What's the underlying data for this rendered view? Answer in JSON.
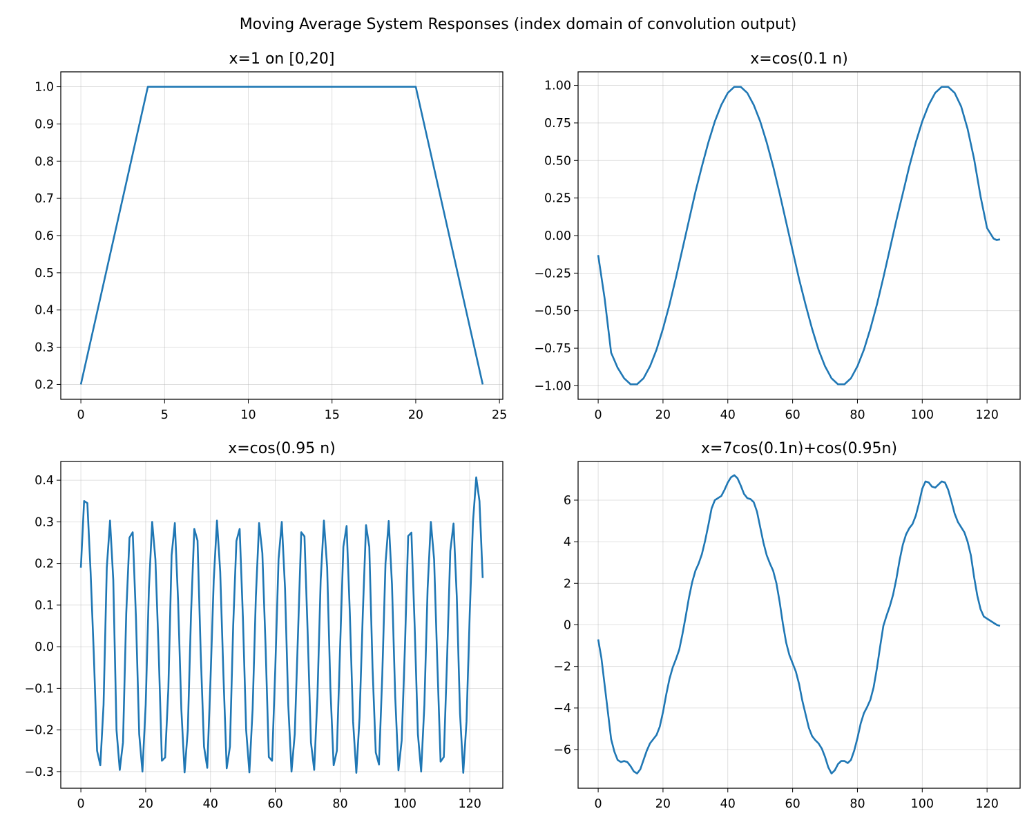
{
  "figure": {
    "suptitle": "Moving Average System Responses (index domain of convolution output)"
  },
  "chart_data": [
    {
      "type": "line",
      "title": "x=1 on [0,20]",
      "xlabel": "",
      "ylabel": "",
      "xlim": [
        -1.2,
        25.2
      ],
      "ylim": [
        0.16,
        1.04
      ],
      "xticks": [
        0,
        5,
        10,
        15,
        20,
        25
      ],
      "xtick_labels": [
        "0",
        "5",
        "10",
        "15",
        "20",
        "25"
      ],
      "yticks": [
        0.2,
        0.3,
        0.4,
        0.5,
        0.6,
        0.7,
        0.8,
        0.9,
        1.0
      ],
      "ytick_labels": [
        "0.2",
        "0.3",
        "0.4",
        "0.5",
        "0.6",
        "0.7",
        "0.8",
        "0.9",
        "1.0"
      ],
      "grid": true,
      "color": "#1f77b4",
      "series": [
        {
          "x": [
            0,
            1,
            2,
            3,
            4,
            5,
            6,
            7,
            8,
            9,
            10,
            11,
            12,
            13,
            14,
            15,
            16,
            17,
            18,
            19,
            20,
            21,
            22,
            23,
            24
          ],
          "y": [
            0.2,
            0.4,
            0.6,
            0.8,
            1.0,
            1.0,
            1.0,
            1.0,
            1.0,
            1.0,
            1.0,
            1.0,
            1.0,
            1.0,
            1.0,
            1.0,
            1.0,
            1.0,
            1.0,
            1.0,
            1.0,
            0.8,
            0.6,
            0.4,
            0.2
          ]
        }
      ]
    },
    {
      "type": "line",
      "title": "x=cos(0.1 n)",
      "xlabel": "",
      "ylabel": "",
      "xlim": [
        -6.2,
        130.2
      ],
      "ylim": [
        -1.09,
        1.09
      ],
      "xticks": [
        0,
        20,
        40,
        60,
        80,
        100,
        120
      ],
      "xtick_labels": [
        "0",
        "20",
        "40",
        "60",
        "80",
        "100",
        "120"
      ],
      "yticks": [
        -1.0,
        -0.75,
        -0.5,
        -0.25,
        0.0,
        0.25,
        0.5,
        0.75,
        1.0
      ],
      "ytick_labels": [
        "−1.00",
        "−0.75",
        "−0.50",
        "−0.25",
        "0.00",
        "0.25",
        "0.50",
        "0.75",
        "1.00"
      ],
      "grid": true,
      "color": "#1f77b4",
      "series": [
        {
          "x": [
            0,
            2,
            4,
            6,
            8,
            10,
            12,
            14,
            16,
            18,
            20,
            22,
            24,
            26,
            28,
            30,
            32,
            34,
            36,
            38,
            40,
            42,
            44,
            46,
            48,
            50,
            52,
            54,
            56,
            58,
            60,
            62,
            64,
            66,
            68,
            70,
            72,
            74,
            76,
            78,
            80,
            82,
            84,
            86,
            88,
            90,
            92,
            94,
            96,
            98,
            100,
            102,
            104,
            106,
            108,
            110,
            112,
            114,
            116,
            118,
            120,
            122,
            123,
            124
          ],
          "y": [
            -0.13,
            -0.42,
            -0.78,
            -0.88,
            -0.95,
            -0.99,
            -0.99,
            -0.95,
            -0.87,
            -0.76,
            -0.62,
            -0.46,
            -0.28,
            -0.09,
            0.1,
            0.29,
            0.46,
            0.62,
            0.76,
            0.87,
            0.95,
            0.99,
            0.99,
            0.95,
            0.87,
            0.76,
            0.62,
            0.46,
            0.28,
            0.09,
            -0.1,
            -0.29,
            -0.46,
            -0.62,
            -0.76,
            -0.87,
            -0.95,
            -0.99,
            -0.99,
            -0.95,
            -0.87,
            -0.76,
            -0.62,
            -0.46,
            -0.28,
            -0.09,
            0.1,
            0.28,
            0.46,
            0.62,
            0.76,
            0.87,
            0.95,
            0.99,
            0.99,
            0.95,
            0.86,
            0.71,
            0.51,
            0.26,
            0.05,
            -0.02,
            -0.03,
            -0.025
          ]
        }
      ]
    },
    {
      "type": "line",
      "title": "x=cos(0.95 n)",
      "xlabel": "",
      "ylabel": "",
      "xlim": [
        -6.2,
        130.2
      ],
      "ylim": [
        -0.34,
        0.445
      ],
      "xticks": [
        0,
        20,
        40,
        60,
        80,
        100,
        120
      ],
      "xtick_labels": [
        "0",
        "20",
        "40",
        "60",
        "80",
        "100",
        "120"
      ],
      "yticks": [
        -0.3,
        -0.2,
        -0.1,
        0.0,
        0.1,
        0.2,
        0.3,
        0.4
      ],
      "ytick_labels": [
        "−0.3",
        "−0.2",
        "−0.1",
        "0.0",
        "0.1",
        "0.2",
        "0.3",
        "0.4"
      ],
      "grid": true,
      "color": "#1f77b4",
      "series": [
        {
          "x": [
            0,
            1,
            2,
            3,
            4,
            5,
            6,
            7,
            8,
            9,
            10,
            11,
            12,
            13,
            14,
            15,
            16,
            17,
            18,
            19,
            20,
            21,
            22,
            23,
            24,
            25,
            26,
            27,
            28,
            29,
            30,
            31,
            32,
            33,
            34,
            35,
            36,
            37,
            38,
            39,
            40,
            41,
            42,
            43,
            44,
            45,
            46,
            47,
            48,
            49,
            50,
            51,
            52,
            53,
            54,
            55,
            56,
            57,
            58,
            59,
            60,
            61,
            62,
            63,
            64,
            65,
            66,
            67,
            68,
            69,
            70,
            71,
            72,
            73,
            74,
            75,
            76,
            77,
            78,
            79,
            80,
            81,
            82,
            83,
            84,
            85,
            86,
            87,
            88,
            89,
            90,
            91,
            92,
            93,
            94,
            95,
            96,
            97,
            98,
            99,
            100,
            101,
            102,
            103,
            104,
            105,
            106,
            107,
            108,
            109,
            110,
            111,
            112,
            113,
            114,
            115,
            116,
            117,
            118,
            119,
            120,
            121,
            122,
            123,
            124
          ],
          "y": [
            0.19,
            0.35,
            0.345,
            0.18,
            -0.02,
            -0.25,
            -0.285,
            -0.14,
            0.19,
            0.303,
            0.16,
            -0.2,
            -0.296,
            -0.23,
            0.08,
            0.262,
            0.275,
            0.07,
            -0.21,
            -0.3,
            -0.14,
            0.14,
            0.3,
            0.21,
            -0.01,
            -0.274,
            -0.266,
            -0.1,
            0.22,
            0.297,
            0.11,
            -0.15,
            -0.302,
            -0.2,
            0.08,
            0.283,
            0.255,
            -0.02,
            -0.24,
            -0.291,
            -0.08,
            0.16,
            0.303,
            0.18,
            -0.07,
            -0.292,
            -0.24,
            0.05,
            0.254,
            0.283,
            0.07,
            -0.2,
            -0.302,
            -0.15,
            0.12,
            0.297,
            0.225,
            0.0,
            -0.265,
            -0.274,
            -0.05,
            0.21,
            0.3,
            0.14,
            -0.14,
            -0.3,
            -0.21,
            0.03,
            0.275,
            0.265,
            0.03,
            -0.23,
            -0.296,
            -0.12,
            0.16,
            0.303,
            0.19,
            -0.1,
            -0.285,
            -0.25,
            0.0,
            0.24,
            0.29,
            0.08,
            -0.18,
            -0.303,
            -0.17,
            0.08,
            0.292,
            0.24,
            -0.05,
            -0.254,
            -0.283,
            -0.07,
            0.2,
            0.302,
            0.15,
            -0.12,
            -0.297,
            -0.225,
            0.0,
            0.266,
            0.274,
            0.05,
            -0.21,
            -0.3,
            -0.14,
            0.14,
            0.3,
            0.21,
            -0.04,
            -0.276,
            -0.265,
            -0.03,
            0.23,
            0.296,
            0.12,
            -0.16,
            -0.303,
            -0.18,
            0.08,
            0.3,
            0.407,
            0.35,
            0.165
          ]
        }
      ]
    },
    {
      "type": "line",
      "title": "x=7cos(0.1n)+cos(0.95n)",
      "xlabel": "",
      "ylabel": "",
      "xlim": [
        -6.2,
        130.2
      ],
      "ylim": [
        -7.86,
        7.86
      ],
      "xticks": [
        0,
        20,
        40,
        60,
        80,
        100,
        120
      ],
      "xtick_labels": [
        "0",
        "20",
        "40",
        "60",
        "80",
        "100",
        "120"
      ],
      "yticks": [
        -6,
        -4,
        -2,
        0,
        2,
        4,
        6
      ],
      "ytick_labels": [
        "−6",
        "−4",
        "−2",
        "0",
        "2",
        "4",
        "6"
      ],
      "grid": true,
      "color": "#1f77b4",
      "series": [
        {
          "x": [
            0,
            1,
            2,
            3,
            4,
            5,
            6,
            7,
            8,
            9,
            10,
            11,
            12,
            13,
            14,
            15,
            16,
            17,
            18,
            19,
            20,
            21,
            22,
            23,
            24,
            25,
            26,
            27,
            28,
            29,
            30,
            31,
            32,
            33,
            34,
            35,
            36,
            37,
            38,
            39,
            40,
            41,
            42,
            43,
            44,
            45,
            46,
            47,
            48,
            49,
            50,
            51,
            52,
            53,
            54,
            55,
            56,
            57,
            58,
            59,
            60,
            61,
            62,
            63,
            64,
            65,
            66,
            67,
            68,
            69,
            70,
            71,
            72,
            73,
            74,
            75,
            76,
            77,
            78,
            79,
            80,
            81,
            82,
            83,
            84,
            85,
            86,
            87,
            88,
            89,
            90,
            91,
            92,
            93,
            94,
            95,
            96,
            97,
            98,
            99,
            100,
            101,
            102,
            103,
            104,
            105,
            106,
            107,
            108,
            109,
            110,
            111,
            112,
            113,
            114,
            115,
            116,
            117,
            118,
            119,
            120,
            121,
            122,
            123,
            124
          ],
          "y": [
            -0.7,
            -1.6,
            -2.9,
            -4.2,
            -5.5,
            -6.1,
            -6.5,
            -6.6,
            -6.55,
            -6.6,
            -6.8,
            -7.05,
            -7.15,
            -6.95,
            -6.5,
            -6.05,
            -5.7,
            -5.5,
            -5.3,
            -4.9,
            -4.2,
            -3.35,
            -2.6,
            -2.05,
            -1.65,
            -1.2,
            -0.45,
            0.4,
            1.3,
            2.05,
            2.6,
            2.95,
            3.4,
            4.05,
            4.8,
            5.6,
            6.0,
            6.1,
            6.2,
            6.5,
            6.85,
            7.1,
            7.2,
            7.05,
            6.7,
            6.3,
            6.1,
            6.05,
            5.9,
            5.45,
            4.7,
            3.95,
            3.35,
            2.95,
            2.6,
            2.0,
            1.1,
            0.05,
            -0.85,
            -1.45,
            -1.85,
            -2.25,
            -2.85,
            -3.65,
            -4.3,
            -4.95,
            -5.35,
            -5.55,
            -5.7,
            -5.95,
            -6.35,
            -6.85,
            -7.15,
            -7.0,
            -6.7,
            -6.55,
            -6.55,
            -6.65,
            -6.5,
            -6.05,
            -5.45,
            -4.75,
            -4.25,
            -3.95,
            -3.6,
            -3.0,
            -2.1,
            -1.05,
            -0.05,
            0.45,
            0.9,
            1.45,
            2.2,
            3.1,
            3.85,
            4.35,
            4.65,
            4.85,
            5.25,
            5.85,
            6.55,
            6.9,
            6.85,
            6.65,
            6.6,
            6.75,
            6.9,
            6.85,
            6.5,
            5.95,
            5.35,
            4.95,
            4.7,
            4.45,
            4.0,
            3.35,
            2.3,
            1.4,
            0.75,
            0.4,
            0.3,
            0.2,
            0.1,
            0.0,
            -0.05
          ]
        }
      ]
    }
  ]
}
